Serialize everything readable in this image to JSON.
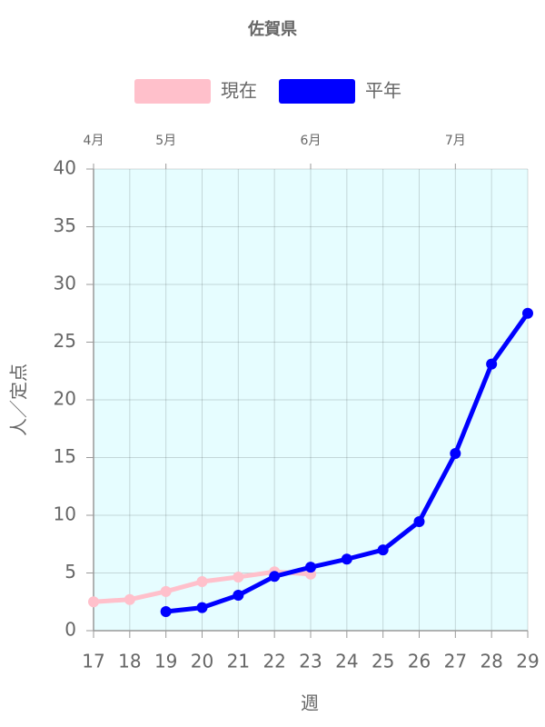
{
  "chart_data": {
    "type": "line",
    "title": "佐賀県",
    "x_label": "週",
    "y_label": "人／定点",
    "x": [
      17,
      18,
      19,
      20,
      21,
      22,
      23,
      24,
      25,
      26,
      27,
      28,
      29
    ],
    "xlim": [
      17,
      29
    ],
    "xticks": [
      17,
      18,
      19,
      20,
      21,
      22,
      23,
      24,
      25,
      26,
      27,
      28,
      29
    ],
    "x2ticks": [
      {
        "value": 17,
        "label": "4月"
      },
      {
        "value": 19,
        "label": "5月"
      },
      {
        "value": 23,
        "label": "6月"
      },
      {
        "value": 27,
        "label": "7月"
      }
    ],
    "ylim": [
      0,
      40
    ],
    "yticks": [
      0,
      5,
      10,
      15,
      20,
      25,
      30,
      35,
      40
    ],
    "grid": true,
    "plot_background": "#e6fdff",
    "legend": "top",
    "series": [
      {
        "name": "現在",
        "color": "#ffc0cb",
        "values": [
          2.5,
          2.7,
          3.4,
          4.25,
          4.65,
          5.1,
          4.9,
          null,
          null,
          null,
          null,
          null,
          null
        ]
      },
      {
        "name": "平年",
        "color": "#0000ff",
        "values": [
          null,
          null,
          1.65,
          2.0,
          3.07,
          4.7,
          5.5,
          6.2,
          7.0,
          9.45,
          15.35,
          23.1,
          27.5
        ]
      }
    ]
  }
}
